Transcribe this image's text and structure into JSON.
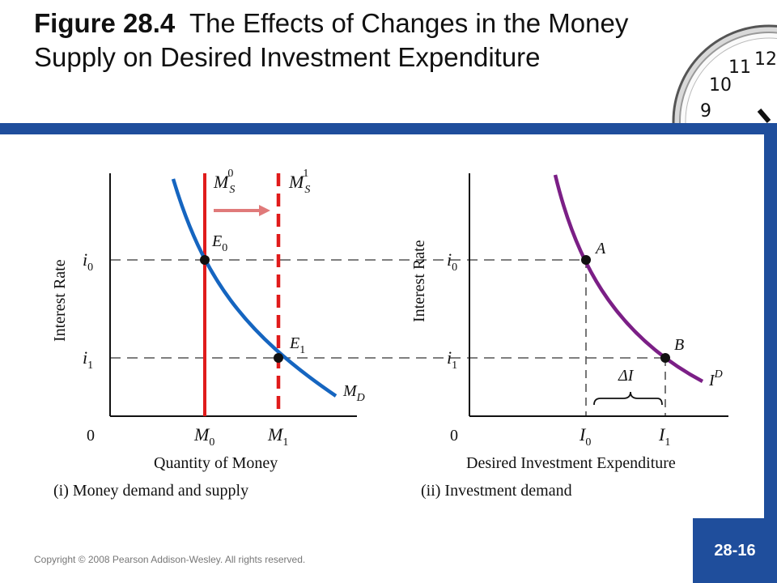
{
  "header": {
    "figure_number": "Figure 28.4",
    "title_text": "The Effects of Changes in the Money Supply on Desired Investment Expenditure"
  },
  "clock_numerals": [
    "12",
    "11",
    "10",
    "9"
  ],
  "panel_left": {
    "ylabel": "Interest Rate",
    "xlabel": "Quantity of Money",
    "caption": "(i) Money demand and supply",
    "origin": "0",
    "y_ticks": [
      {
        "base": "i",
        "sub": "0"
      },
      {
        "base": "i",
        "sub": "1"
      }
    ],
    "x_ticks": [
      {
        "base": "M",
        "sub": "0"
      },
      {
        "base": "M",
        "sub": "1"
      }
    ],
    "ms0": {
      "base": "M",
      "sub": "S",
      "sup": "0"
    },
    "ms1": {
      "base": "M",
      "sub": "S",
      "sup": "1"
    },
    "md": {
      "base": "M",
      "sub": "D"
    },
    "e0": {
      "base": "E",
      "sub": "0"
    },
    "e1": {
      "base": "E",
      "sub": "1"
    }
  },
  "panel_right": {
    "ylabel": "Interest Rate",
    "xlabel": "Desired Investment Expenditure",
    "caption": "(ii) Investment demand",
    "origin": "0",
    "y_ticks": [
      {
        "base": "i",
        "sub": "0"
      },
      {
        "base": "i",
        "sub": "1"
      }
    ],
    "x_ticks": [
      {
        "base": "I",
        "sub": "0"
      },
      {
        "base": "I",
        "sub": "1"
      }
    ],
    "point_a": "A",
    "point_b": "B",
    "delta": "ΔI",
    "id": {
      "base": "I",
      "sup": "D"
    }
  },
  "colors": {
    "header_blue": "#1f4e9c",
    "money_demand": "#1565c0",
    "money_supply": "#e01b1b",
    "shift_arrow": "#e07a7a",
    "investment_demand": "#7b1f86"
  },
  "footer": {
    "copyright": "Copyright © 2008 Pearson Addison-Wesley. All rights reserved.",
    "page": "28-16"
  }
}
